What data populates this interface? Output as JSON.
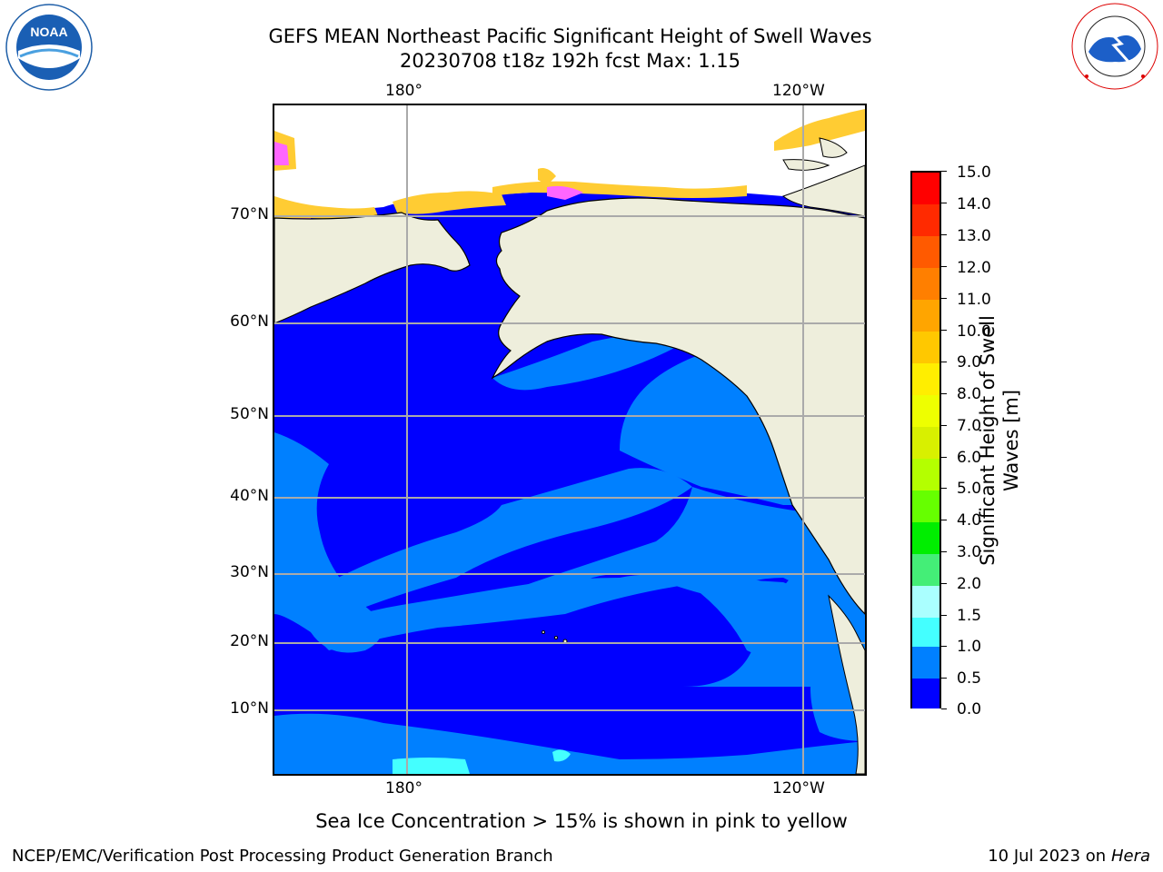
{
  "header": {
    "title_line1": "GEFS MEAN Northeast Pacific Significant Height of Swell Waves",
    "title_line2": "20230708 t18z 192h fcst   Max: 1.15"
  },
  "logos": {
    "noaa_text": "NOAA",
    "noaa_ring": "NATIONAL OCEANIC AND ATMOSPHERIC ADMINISTRATION · U.S. DEPARTMENT OF COMMERCE",
    "nws_ring": "NATIONAL WEATHER SERVICE"
  },
  "map": {
    "top_lon_labels": [
      "180°",
      "120°W"
    ],
    "bottom_lon_labels": [
      "180°",
      "120°W"
    ],
    "lat_labels": [
      "70°N",
      "60°N",
      "50°N",
      "40°N",
      "30°N",
      "20°N",
      "10°N"
    ],
    "colors": {
      "ocean_dark": "#0000ff",
      "ocean_light": "#0080ff",
      "cyan": "#00ffff",
      "land": "#eeeedc",
      "ice_pink": "#ff66ff",
      "ice_yellow": "#ffcc33"
    }
  },
  "colorbar": {
    "ticks": [
      "15.0",
      "14.0",
      "13.0",
      "12.0",
      "11.0",
      "10.0",
      "9.0",
      "8.0",
      "7.0",
      "6.0",
      "5.0",
      "4.0",
      "3.0",
      "2.0",
      "1.5",
      "1.0",
      "0.5",
      "0.0"
    ],
    "label_line1": "Significant Height of Swell",
    "label_line2": "Waves [m]",
    "segment_colors": [
      "#ff0000",
      "#ff2200",
      "#ff5500",
      "#ff7700",
      "#ff9900",
      "#ffbb00",
      "#ffee00",
      "#eeff00",
      "#ccee00",
      "#b4ff00",
      "#66ff00",
      "#00ee00",
      "#00cc44",
      "#55ff88",
      "#aaffff",
      "#44ffff",
      "#00ffff",
      "#0080ff",
      "#0000ff"
    ]
  },
  "caption": "Sea Ice Concentration > 15% is shown in pink to yellow",
  "footer": {
    "left": "NCEP/EMC/Verification Post Processing Product Generation Branch",
    "right_date": "10 Jul 2023 on ",
    "right_machine": "Hera"
  }
}
